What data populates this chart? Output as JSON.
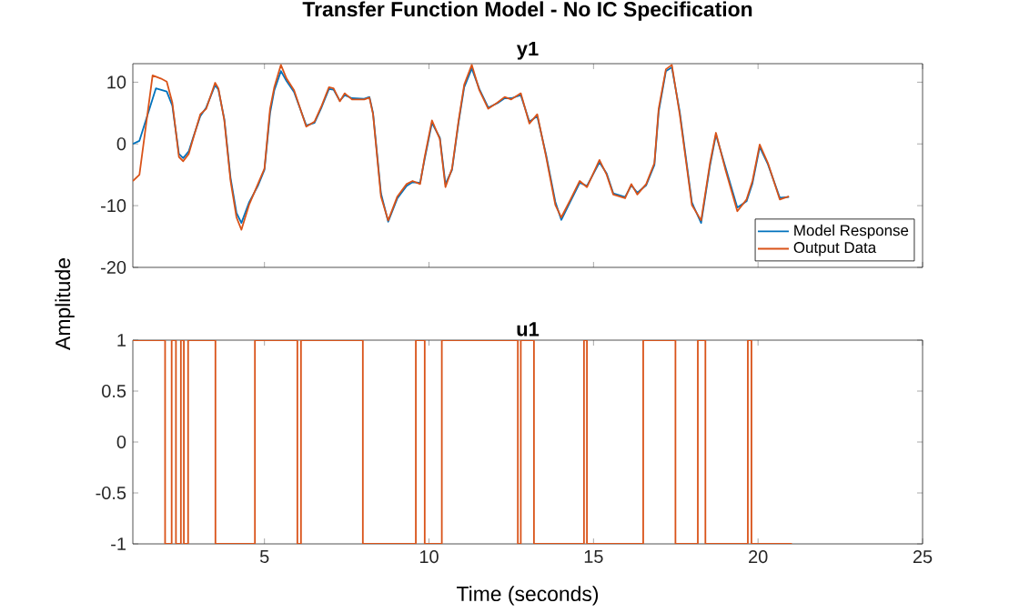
{
  "chart_data": [
    {
      "type": "line",
      "title": "Transfer Function Model - No IC Specification",
      "subtitle": "y1",
      "ylabel": "Amplitude",
      "xlim": [
        1,
        25
      ],
      "ylim": [
        -20,
        13
      ],
      "xticks": [
        5,
        10,
        15,
        20,
        25
      ],
      "yticks": [
        -20,
        -10,
        0,
        10
      ],
      "tick_labels": "y",
      "legend": "bottom right",
      "series": [
        {
          "name": "Model Response",
          "color": "#0072bd",
          "x": [
            1.0,
            1.2,
            1.7,
            2.03,
            2.2,
            2.4,
            2.53,
            2.7,
            2.83,
            3.05,
            3.23,
            3.5,
            3.6,
            3.78,
            3.97,
            4.15,
            4.3,
            4.53,
            4.8,
            5.0,
            5.17,
            5.3,
            5.5,
            5.67,
            5.9,
            6.27,
            6.52,
            6.74,
            6.96,
            7.1,
            7.29,
            7.44,
            7.66,
            8.03,
            8.19,
            8.3,
            8.54,
            8.76,
            9.04,
            9.32,
            9.5,
            9.73,
            9.87,
            10.09,
            10.33,
            10.5,
            10.7,
            10.9,
            11.07,
            11.3,
            11.53,
            11.8,
            12.08,
            12.3,
            12.5,
            12.79,
            13.05,
            13.29,
            13.56,
            13.84,
            14.02,
            14.3,
            14.58,
            14.8,
            15.18,
            15.4,
            15.6,
            15.96,
            16.15,
            16.33,
            16.6,
            16.85,
            16.98,
            17.2,
            17.38,
            17.62,
            17.99,
            18.27,
            18.54,
            18.72,
            19.0,
            19.37,
            19.65,
            19.83,
            20.05,
            20.3,
            20.66,
            20.94
          ],
          "values": [
            0.0,
            0.5,
            9.0,
            8.5,
            6.2,
            -1.6,
            -2.3,
            -1.2,
            1.0,
            4.5,
            5.9,
            9.5,
            8.8,
            4.0,
            -5.5,
            -11.2,
            -12.8,
            -9.5,
            -6.8,
            -4.2,
            5.0,
            8.7,
            11.8,
            10.2,
            8.4,
            3.0,
            3.4,
            6.0,
            8.9,
            8.8,
            7.0,
            7.9,
            7.4,
            7.3,
            7.6,
            5.0,
            -8.0,
            -12.6,
            -8.8,
            -6.8,
            -6.2,
            -6.3,
            -2.4,
            3.4,
            1.0,
            -6.5,
            -4.2,
            3.5,
            9.2,
            12.2,
            8.9,
            5.9,
            6.6,
            7.4,
            7.4,
            7.9,
            3.6,
            4.5,
            -1.8,
            -9.4,
            -12.3,
            -9.3,
            -6.3,
            -6.8,
            -3.0,
            -4.8,
            -8.0,
            -8.6,
            -6.7,
            -7.9,
            -6.7,
            -3.4,
            5.2,
            11.8,
            12.4,
            5.2,
            -9.5,
            -12.8,
            -3.5,
            1.5,
            -3.6,
            -10.3,
            -9.3,
            -6.4,
            -0.5,
            -3.3,
            -8.7,
            -8.6
          ]
        },
        {
          "name": "Output Data",
          "color": "#d95319",
          "x": [
            1.0,
            1.2,
            1.6,
            1.85,
            2.03,
            2.2,
            2.4,
            2.53,
            2.7,
            2.83,
            3.05,
            3.23,
            3.5,
            3.6,
            3.78,
            3.97,
            4.15,
            4.3,
            4.53,
            4.8,
            5.0,
            5.17,
            5.3,
            5.5,
            5.67,
            5.9,
            6.27,
            6.52,
            6.74,
            6.96,
            7.1,
            7.29,
            7.44,
            7.66,
            8.03,
            8.19,
            8.3,
            8.54,
            8.76,
            9.04,
            9.32,
            9.5,
            9.73,
            9.87,
            10.09,
            10.33,
            10.5,
            10.7,
            10.9,
            11.07,
            11.3,
            11.53,
            11.8,
            12.08,
            12.3,
            12.5,
            12.79,
            13.05,
            13.29,
            13.56,
            13.84,
            14.02,
            14.3,
            14.58,
            14.8,
            15.18,
            15.4,
            15.6,
            15.96,
            16.15,
            16.33,
            16.6,
            16.85,
            16.98,
            17.2,
            17.38,
            17.62,
            17.99,
            18.27,
            18.54,
            18.72,
            19.0,
            19.37,
            19.65,
            19.83,
            20.05,
            20.3,
            20.66,
            20.94
          ],
          "values": [
            -6.0,
            -5.0,
            11.1,
            10.6,
            10.1,
            6.7,
            -2.1,
            -2.8,
            -1.6,
            0.8,
            4.8,
            5.7,
            9.9,
            9.0,
            3.8,
            -6.0,
            -11.9,
            -13.9,
            -9.9,
            -6.5,
            -4.0,
            5.7,
            9.2,
            12.8,
            10.6,
            8.7,
            2.8,
            3.6,
            6.2,
            9.2,
            9.0,
            6.9,
            8.2,
            7.2,
            7.2,
            7.5,
            4.8,
            -8.5,
            -12.4,
            -8.5,
            -6.5,
            -6.0,
            -6.5,
            -2.1,
            3.8,
            0.8,
            -7.0,
            -4.0,
            3.8,
            9.6,
            12.8,
            8.7,
            5.7,
            6.7,
            7.6,
            7.2,
            8.2,
            3.3,
            4.8,
            -2.1,
            -9.9,
            -11.9,
            -9.0,
            -6.0,
            -7.0,
            -2.6,
            -5.0,
            -8.2,
            -8.8,
            -6.5,
            -8.2,
            -6.5,
            -3.1,
            5.7,
            12.1,
            12.8,
            4.8,
            -9.9,
            -12.4,
            -3.1,
            1.8,
            -4.0,
            -10.9,
            -9.0,
            -6.0,
            -0.1,
            -3.1,
            -9.0,
            -8.5
          ]
        }
      ]
    },
    {
      "type": "step",
      "title": "u1",
      "xlabel": "Time (seconds)",
      "xlim": [
        1,
        25
      ],
      "ylim": [
        -1,
        1
      ],
      "xticks": [
        5,
        10,
        15,
        20,
        25
      ],
      "yticks": [
        -1,
        -0.5,
        0,
        0.5,
        1
      ],
      "series": [
        {
          "color": "#d95319",
          "x": [
            1.0,
            1.98,
            2.18,
            2.31,
            2.46,
            2.55,
            2.68,
            3.51,
            4.71,
            6.0,
            6.11,
            7.99,
            9.6,
            9.87,
            10.39,
            12.7,
            12.79,
            13.19,
            14.71,
            14.8,
            16.51,
            17.49,
            18.17,
            18.4,
            19.69,
            19.8,
            21.03
          ],
          "values": [
            1,
            -1,
            1,
            -1,
            1,
            -1,
            1,
            -1,
            1,
            -1,
            1,
            -1,
            1,
            -1,
            1,
            -1,
            1,
            -1,
            1,
            -1,
            1,
            -1,
            1,
            -1,
            1,
            -1,
            -1
          ]
        }
      ]
    }
  ]
}
